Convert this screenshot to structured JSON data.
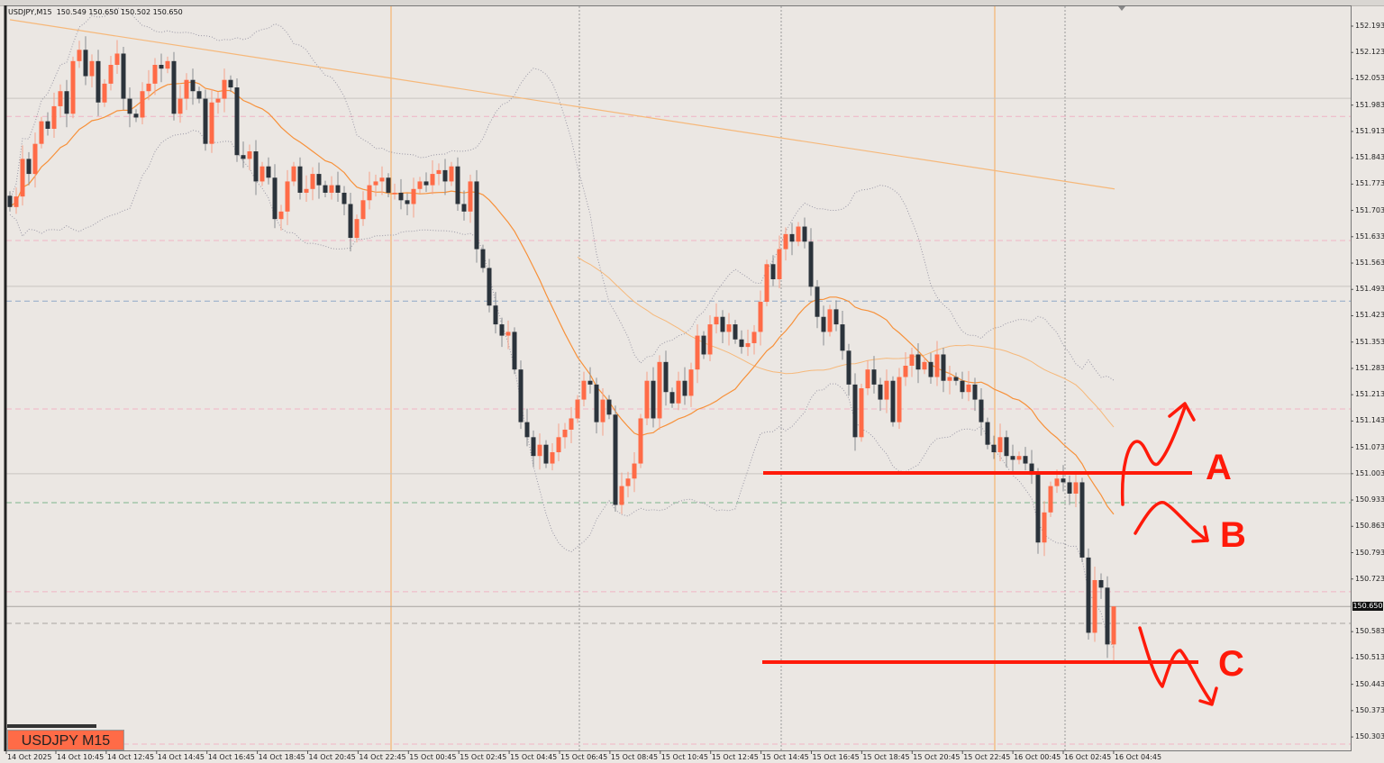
{
  "header": {
    "symbol": "USDJPY,M15",
    "ohlc": "150.549 150.650 150.502 150.650"
  },
  "symbol_label": "USDJPY M15",
  "annotations": {
    "a": "A",
    "b": "B",
    "c": "C"
  },
  "colors": {
    "bull": "#ff6b47",
    "bear": "#2b333b",
    "background": "#ebe7e3",
    "fast_ma": "#f7913a",
    "slow_ma": "#f6b87a",
    "bands": "#9a98a6",
    "annotation": "#ff1a0a"
  },
  "chart_data": {
    "type": "candlestick",
    "instrument": "USDJPY",
    "timeframe": "M15",
    "ylim": [
      150.28,
      152.21
    ],
    "price_ticks": [
      "152.193",
      "152.123",
      "152.053",
      "151.983",
      "151.913",
      "151.843",
      "151.773",
      "151.703",
      "151.633",
      "151.563",
      "151.493",
      "151.423",
      "151.353",
      "151.283",
      "151.213",
      "151.143",
      "151.073",
      "151.003",
      "150.933",
      "150.863",
      "150.793",
      "150.723",
      "150.583",
      "150.513",
      "150.443",
      "150.373",
      "150.303"
    ],
    "time_ticks": [
      "14 Oct 2025",
      "14 Oct 10:45",
      "14 Oct 12:45",
      "14 Oct 14:45",
      "14 Oct 16:45",
      "14 Oct 18:45",
      "14 Oct 20:45",
      "14 Oct 22:45",
      "15 Oct 00:45",
      "15 Oct 02:45",
      "15 Oct 04:45",
      "15 Oct 06:45",
      "15 Oct 08:45",
      "15 Oct 10:45",
      "15 Oct 12:45",
      "15 Oct 14:45",
      "15 Oct 16:45",
      "15 Oct 18:45",
      "15 Oct 20:45",
      "15 Oct 22:45",
      "16 Oct 00:45",
      "16 Oct 02:45",
      "16 Oct 04:45"
    ],
    "bid": "150.650",
    "last_candle": {
      "open": 150.549,
      "high": 150.65,
      "low": 150.502,
      "close": 150.65
    },
    "close": [
      151.712,
      151.74,
      151.84,
      151.8,
      151.88,
      151.94,
      151.92,
      151.98,
      152.02,
      151.96,
      152.1,
      152.13,
      152.06,
      152.1,
      151.99,
      152.04,
      152.09,
      152.12,
      152.0,
      151.96,
      151.95,
      152.02,
      152.04,
      152.09,
      152.08,
      152.1,
      151.96,
      152.0,
      152.05,
      152.02,
      152.0,
      151.88,
      151.99,
      152.0,
      152.05,
      152.03,
      151.85,
      151.84,
      151.86,
      151.78,
      151.82,
      151.79,
      151.68,
      151.7,
      151.78,
      151.82,
      151.75,
      151.76,
      151.8,
      151.77,
      151.75,
      151.77,
      151.75,
      151.72,
      151.63,
      151.68,
      151.73,
      151.77,
      151.78,
      151.79,
      151.75,
      151.75,
      151.73,
      151.72,
      151.76,
      151.78,
      151.77,
      151.8,
      151.81,
      151.78,
      151.82,
      151.72,
      151.7,
      151.78,
      151.6,
      151.55,
      151.45,
      151.4,
      151.37,
      151.38,
      151.28,
      151.14,
      151.1,
      151.05,
      151.08,
      151.03,
      151.06,
      151.1,
      151.12,
      151.15,
      151.2,
      151.25,
      151.24,
      151.14,
      151.2,
      151.16,
      150.92,
      150.97,
      150.99,
      151.03,
      151.15,
      151.25,
      151.15,
      151.3,
      151.22,
      151.19,
      151.25,
      151.21,
      151.28,
      151.37,
      151.32,
      151.4,
      151.42,
      151.38,
      151.4,
      151.36,
      151.34,
      151.35,
      151.38,
      151.46,
      151.56,
      151.52,
      151.6,
      151.64,
      151.62,
      151.66,
      151.62,
      151.5,
      151.42,
      151.38,
      151.44,
      151.4,
      151.33,
      151.24,
      151.1,
      151.23,
      151.28,
      151.24,
      151.2,
      151.25,
      151.14,
      151.26,
      151.29,
      151.32,
      151.28,
      151.3,
      151.26,
      151.32,
      151.25,
      151.26,
      151.25,
      151.22,
      151.24,
      151.2,
      151.14,
      151.08,
      151.06,
      151.1,
      151.05,
      151.04,
      151.05,
      151.03,
      151.0,
      150.82,
      150.9,
      150.97,
      150.99,
      150.98,
      150.95,
      150.98,
      150.78,
      150.58,
      150.72,
      150.7,
      150.549,
      150.65
    ],
    "indicators": {
      "fast_ma_period": 20,
      "mid_ma_period": 50,
      "bollinger": {
        "period": 20,
        "deviation": 2
      },
      "slow_ma": {
        "start": 152.21,
        "end": 151.76
      }
    },
    "horizontal_levels": [
      {
        "price": 151.953,
        "style": "dashed",
        "color": "#f0b4c4"
      },
      {
        "price": 151.623,
        "style": "dashed",
        "color": "#f0b4c4"
      },
      {
        "price": 151.175,
        "style": "dashed",
        "color": "#f0b4c4"
      },
      {
        "price": 150.689,
        "style": "dashed",
        "color": "#f0b4c4"
      },
      {
        "price": 150.284,
        "style": "dashed",
        "color": "#f0b4c4"
      },
      {
        "price": 152.001,
        "style": "solid",
        "color": "#c8c4c0"
      },
      {
        "price": 151.501,
        "style": "solid",
        "color": "#c8c4c0"
      },
      {
        "price": 151.003,
        "style": "solid",
        "color": "#c8c4c0"
      },
      {
        "price": 150.65,
        "style": "solid",
        "color": "#a8a4a0"
      },
      {
        "price": 151.462,
        "style": "dashed",
        "color": "#8fa8c8"
      },
      {
        "price": 150.926,
        "style": "dashed",
        "color": "#7cb48c"
      },
      {
        "price": 150.605,
        "style": "dashed",
        "color": "#a8a4a0"
      }
    ],
    "drawn_levels": [
      151.003,
      150.502
    ],
    "grid": false
  }
}
